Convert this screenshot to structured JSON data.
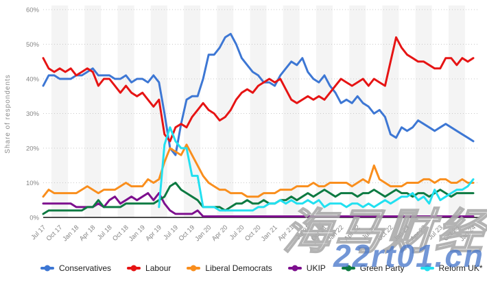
{
  "y_axis": {
    "title": "Share of respondents",
    "ticks": [
      "0%",
      "10%",
      "20%",
      "30%",
      "40%",
      "50%",
      "60%"
    ]
  },
  "watermarks": {
    "cjk": "海马财经",
    "site": "22rt01.cn"
  },
  "chart_data": {
    "type": "line",
    "title": "",
    "xlabel": "",
    "ylabel": "Share of respondents",
    "ylim": [
      0,
      60
    ],
    "grid": "dotted horizontal gridlines every 10%, alternating light vertical quarter stripes",
    "legend_position": "bottom",
    "x_unit": "monthly, Jul 2017 - Jan 2024",
    "x_tick_labels": [
      "Jul 17",
      "Oct 17",
      "Jan 18",
      "Apr 18",
      "Jul 18",
      "Oct 18",
      "Jan 19",
      "Apr 19",
      "Jul 19",
      "Oct 19",
      "Jan 20",
      "Apr 20",
      "Jul 20",
      "Oct 20",
      "Jan 21",
      "Apr 21",
      "Jul 21",
      "Oct 21",
      "Jan 22",
      "Apr 22",
      "Jul 22",
      "Oct 22",
      "Jan 23",
      "Apr 23",
      "Jul 23",
      "Oct 23",
      "Jan 24"
    ],
    "series": [
      {
        "name": "Conservatives",
        "color": "#3d77d4",
        "values": [
          38,
          41,
          41,
          40,
          40,
          40,
          41,
          41,
          42,
          43,
          41,
          41,
          41,
          40,
          40,
          41,
          39,
          40,
          40,
          39,
          41,
          39,
          30,
          20,
          18,
          27,
          34,
          35,
          35,
          40,
          47,
          47,
          49,
          52,
          53,
          50,
          46,
          44,
          42,
          41,
          39,
          39,
          38,
          41,
          43,
          45,
          44,
          46,
          42,
          40,
          39,
          41,
          38,
          36,
          33,
          34,
          33,
          35,
          33,
          32,
          30,
          31,
          29,
          24,
          23,
          26,
          25,
          26,
          28,
          27,
          26,
          25,
          26,
          27,
          26,
          25,
          24,
          23,
          22
        ]
      },
      {
        "name": "Labour",
        "color": "#e61414",
        "values": [
          46,
          43,
          42,
          43,
          42,
          43,
          41,
          42,
          43,
          42,
          38,
          40,
          40,
          38,
          36,
          38,
          36,
          35,
          36,
          34,
          32,
          34,
          24,
          22,
          26,
          27,
          26,
          29,
          31,
          33,
          31,
          30,
          28,
          29,
          31,
          34,
          36,
          37,
          36,
          38,
          39,
          40,
          39,
          40,
          37,
          34,
          33,
          34,
          35,
          34,
          35,
          34,
          36,
          38,
          40,
          39,
          38,
          39,
          40,
          38,
          40,
          39,
          38,
          45,
          52,
          49,
          47,
          46,
          45,
          45,
          44,
          43,
          43,
          46,
          46,
          44,
          46,
          45,
          46
        ]
      },
      {
        "name": "Liberal Democrats",
        "color": "#f98e1d",
        "values": [
          6,
          8,
          7,
          7,
          7,
          7,
          7,
          8,
          9,
          8,
          7,
          8,
          8,
          8,
          9,
          10,
          9,
          9,
          9,
          11,
          10,
          11,
          16,
          20,
          19,
          18,
          21,
          18,
          15,
          12,
          10,
          9,
          8,
          8,
          7,
          7,
          7,
          6,
          6,
          6,
          7,
          7,
          7,
          8,
          8,
          8,
          9,
          9,
          9,
          10,
          9,
          9,
          10,
          10,
          10,
          10,
          9,
          10,
          11,
          10,
          15,
          11,
          10,
          9,
          9,
          9,
          10,
          10,
          10,
          11,
          11,
          10,
          11,
          11,
          10,
          10,
          11,
          10,
          10
        ]
      },
      {
        "name": "UKIP",
        "color": "#7d0f8e",
        "values": [
          4,
          4,
          4,
          4,
          4,
          4,
          3,
          3,
          3,
          3,
          4,
          3,
          5,
          6,
          4,
          5,
          6,
          5,
          6,
          7,
          5,
          7,
          4,
          2,
          1,
          1,
          1,
          1,
          2,
          0.3,
          0.3,
          0.3,
          0.3,
          0.3,
          0.3,
          0.3,
          0.3,
          0.3,
          0.3,
          0.3,
          0.3,
          0.3,
          0.3,
          0.3,
          0.3,
          0.3,
          0.3,
          0.3,
          0.3,
          0.3,
          0.3,
          0.3,
          0.3,
          0.3,
          0.3,
          0.3,
          0.3,
          0.3,
          0.3,
          0.3,
          0.3,
          0.3,
          0.3,
          0.3,
          0.3,
          0.3,
          0.3,
          0.3,
          0.3,
          0.3,
          0.3,
          0.3,
          0.3,
          0.3,
          0.3,
          0.3,
          0.3,
          0.3,
          0.3
        ]
      },
      {
        "name": "Green Party",
        "color": "#0d7a42",
        "values": [
          1,
          2,
          2,
          2,
          2,
          2,
          2,
          2,
          3,
          3,
          5,
          3,
          3,
          3,
          3,
          4,
          4,
          4,
          4,
          4,
          4,
          5,
          6,
          9,
          10,
          8,
          7,
          6,
          5,
          3,
          3,
          3,
          3,
          2,
          3,
          4,
          4,
          5,
          4,
          4,
          5,
          4,
          4,
          5,
          5,
          6,
          5,
          6,
          7,
          6,
          7,
          8,
          7,
          6,
          7,
          7,
          7,
          6,
          7,
          7,
          8,
          7,
          6,
          7,
          8,
          7,
          7,
          6,
          7,
          7,
          6,
          7,
          8,
          7,
          6,
          7,
          7,
          7,
          7
        ]
      },
      {
        "name": "Reform UK*",
        "color": "#22e0f0",
        "values": [
          null,
          null,
          null,
          null,
          null,
          null,
          null,
          null,
          null,
          null,
          null,
          null,
          null,
          null,
          null,
          null,
          null,
          null,
          null,
          null,
          null,
          3,
          21,
          26,
          22,
          20,
          20,
          12,
          12,
          3,
          3,
          3,
          2,
          2,
          2,
          2,
          2,
          2,
          2,
          3,
          3,
          4,
          4,
          5,
          4,
          5,
          4,
          4,
          5,
          4,
          5,
          3,
          4,
          4,
          4,
          3,
          4,
          4,
          3,
          4,
          3,
          4,
          5,
          4,
          5,
          6,
          6,
          7,
          5,
          6,
          4,
          8,
          5,
          6,
          7,
          8,
          8,
          9,
          11
        ]
      }
    ]
  }
}
